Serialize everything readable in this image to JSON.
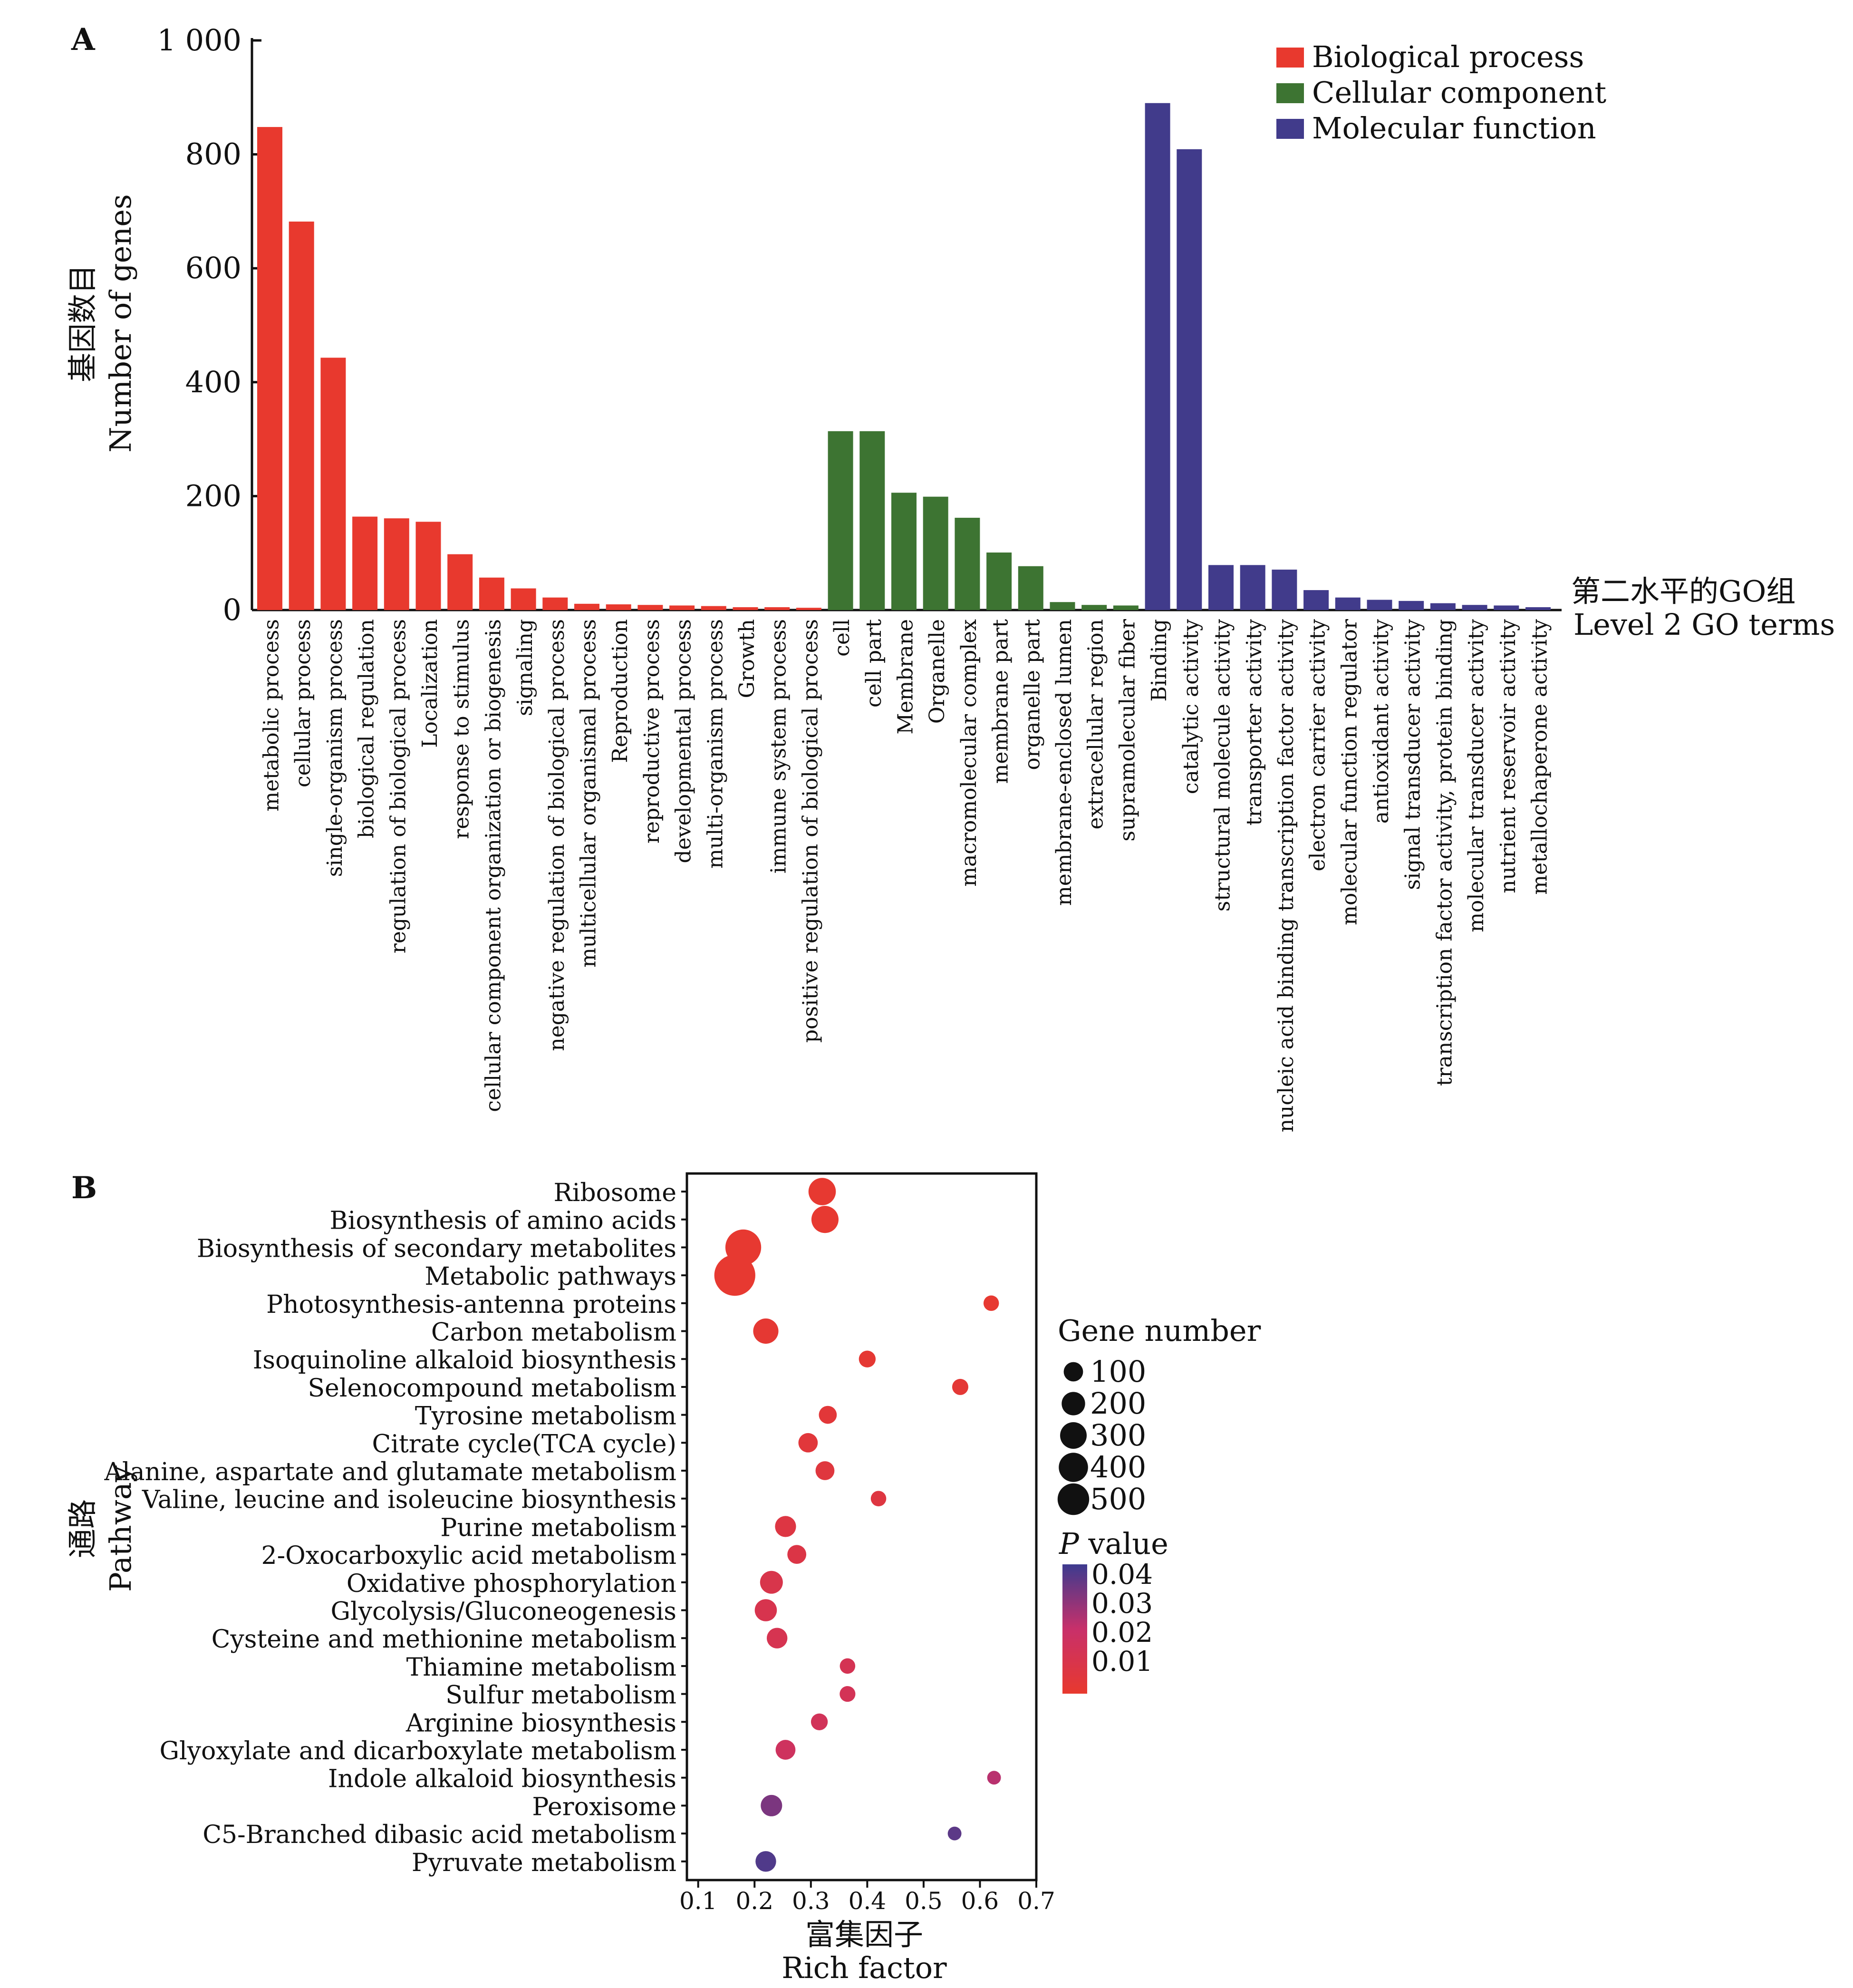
{
  "colors": {
    "biological_process": "#e8392e",
    "cellular_component": "#3d7432",
    "molecular_function": "#413b8b",
    "p_low": "#e8392e",
    "p_mid": "#c8306a",
    "p_high": "#3d3b8f",
    "axis": "#111111"
  },
  "chart_data": [
    {
      "type": "bar",
      "panel_label": "A",
      "ylabel_cn": "基因数目",
      "ylabel_en": "Number of genes",
      "xlabel_cn": "第二水平的GO组",
      "xlabel_en": "Level 2 GO terms",
      "ylim": [
        0,
        1000
      ],
      "yticks": [
        "0",
        "200",
        "400",
        "600",
        "800",
        "1 000"
      ],
      "legend_position": "top-right",
      "legend": [
        {
          "name": "Biological process",
          "color_key": "biological_process"
        },
        {
          "name": "Cellular component",
          "color_key": "cellular_component"
        },
        {
          "name": "Molecular function",
          "color_key": "molecular_function"
        }
      ],
      "bars": [
        {
          "label": "metabolic process",
          "value": 848,
          "group": "biological_process"
        },
        {
          "label": "cellular process",
          "value": 682,
          "group": "biological_process"
        },
        {
          "label": "single-organism process",
          "value": 443,
          "group": "biological_process"
        },
        {
          "label": "biological regulation",
          "value": 164,
          "group": "biological_process"
        },
        {
          "label": "regulation of biological process",
          "value": 161,
          "group": "biological_process"
        },
        {
          "label": "Localization",
          "value": 155,
          "group": "biological_process"
        },
        {
          "label": "response to stimulus",
          "value": 98,
          "group": "biological_process"
        },
        {
          "label": "cellular component organization or biogenesis",
          "value": 57,
          "group": "biological_process"
        },
        {
          "label": "signaling",
          "value": 38,
          "group": "biological_process"
        },
        {
          "label": "negative regulation of biological process",
          "value": 22,
          "group": "biological_process"
        },
        {
          "label": "multicellular organismal process",
          "value": 11,
          "group": "biological_process"
        },
        {
          "label": "Reproduction",
          "value": 10,
          "group": "biological_process"
        },
        {
          "label": "reproductive process",
          "value": 9,
          "group": "biological_process"
        },
        {
          "label": "developmental process",
          "value": 8,
          "group": "biological_process"
        },
        {
          "label": "multi-organism process",
          "value": 7,
          "group": "biological_process"
        },
        {
          "label": "Growth",
          "value": 5,
          "group": "biological_process"
        },
        {
          "label": "immune system process",
          "value": 5,
          "group": "biological_process"
        },
        {
          "label": "positive regulation of biological process",
          "value": 4,
          "group": "biological_process"
        },
        {
          "label": "cell",
          "value": 314,
          "group": "cellular_component"
        },
        {
          "label": "cell part",
          "value": 314,
          "group": "cellular_component"
        },
        {
          "label": "Membrane",
          "value": 206,
          "group": "cellular_component"
        },
        {
          "label": "Organelle",
          "value": 199,
          "group": "cellular_component"
        },
        {
          "label": "macromolecular complex",
          "value": 162,
          "group": "cellular_component"
        },
        {
          "label": "membrane part",
          "value": 101,
          "group": "cellular_component"
        },
        {
          "label": "organelle part",
          "value": 77,
          "group": "cellular_component"
        },
        {
          "label": "membrane-enclosed lumen",
          "value": 14,
          "group": "cellular_component"
        },
        {
          "label": "extracellular region",
          "value": 9,
          "group": "cellular_component"
        },
        {
          "label": "supramolecular fiber",
          "value": 8,
          "group": "cellular_component"
        },
        {
          "label": "Binding",
          "value": 890,
          "group": "molecular_function"
        },
        {
          "label": "catalytic activity",
          "value": 809,
          "group": "molecular_function"
        },
        {
          "label": "structural molecule activity",
          "value": 79,
          "group": "molecular_function"
        },
        {
          "label": "transporter activity",
          "value": 79,
          "group": "molecular_function"
        },
        {
          "label": "nucleic acid binding transcription factor activity",
          "value": 71,
          "group": "molecular_function"
        },
        {
          "label": "electron carrier activity",
          "value": 35,
          "group": "molecular_function"
        },
        {
          "label": "molecular function regulator",
          "value": 22,
          "group": "molecular_function"
        },
        {
          "label": "antioxidant activity",
          "value": 18,
          "group": "molecular_function"
        },
        {
          "label": "signal transducer activity",
          "value": 16,
          "group": "molecular_function"
        },
        {
          "label": "transcription factor activity, protein binding",
          "value": 12,
          "group": "molecular_function"
        },
        {
          "label": "molecular transducer activity",
          "value": 9,
          "group": "molecular_function"
        },
        {
          "label": "nutrient reservoir activity",
          "value": 8,
          "group": "molecular_function"
        },
        {
          "label": "metallochaperone activity",
          "value": 5,
          "group": "molecular_function"
        }
      ]
    },
    {
      "type": "scatter",
      "panel_label": "B",
      "ylabel_cn": "通路",
      "ylabel_en": "Pathway",
      "xlabel_cn": "富集因子",
      "xlabel_en": "Rich factor",
      "xlim": [
        0.08,
        0.7
      ],
      "xticks": [
        "0.1",
        "0.2",
        "0.3",
        "0.4",
        "0.5",
        "0.6",
        "0.7"
      ],
      "size_legend_title": "Gene number",
      "size_legend": [
        100,
        200,
        300,
        400,
        500
      ],
      "color_legend_title_italic": "P",
      "color_legend_title_rest": " value",
      "color_legend": [
        "0.04",
        "0.03",
        "0.02",
        "0.01"
      ],
      "plim": [
        0,
        0.045
      ],
      "points": [
        {
          "pathway": "Ribosome",
          "rich_factor": 0.32,
          "gene_number": 180,
          "p_value": 0.001
        },
        {
          "pathway": "Biosynthesis of amino acids",
          "rich_factor": 0.325,
          "gene_number": 175,
          "p_value": 0.001
        },
        {
          "pathway": "Biosynthesis of secondary metabolites",
          "rich_factor": 0.18,
          "gene_number": 390,
          "p_value": 0.001
        },
        {
          "pathway": "Metabolic pathways",
          "rich_factor": 0.165,
          "gene_number": 560,
          "p_value": 0.001
        },
        {
          "pathway": "Photosynthesis-antenna proteins",
          "rich_factor": 0.62,
          "gene_number": 20,
          "p_value": 0.001
        },
        {
          "pathway": "Carbon metabolism",
          "rich_factor": 0.22,
          "gene_number": 140,
          "p_value": 0.002
        },
        {
          "pathway": "Isoquinoline alkaloid biosynthesis",
          "rich_factor": 0.4,
          "gene_number": 30,
          "p_value": 0.002
        },
        {
          "pathway": "Selenocompound metabolism",
          "rich_factor": 0.565,
          "gene_number": 25,
          "p_value": 0.003
        },
        {
          "pathway": "Tyrosine metabolism",
          "rich_factor": 0.33,
          "gene_number": 40,
          "p_value": 0.004
        },
        {
          "pathway": "Citrate cycle(TCA cycle)",
          "rich_factor": 0.295,
          "gene_number": 55,
          "p_value": 0.005
        },
        {
          "pathway": "Alanine, aspartate and glutamate metabolism",
          "rich_factor": 0.325,
          "gene_number": 50,
          "p_value": 0.006
        },
        {
          "pathway": "Valine, leucine and isoleucine biosynthesis",
          "rich_factor": 0.42,
          "gene_number": 20,
          "p_value": 0.007
        },
        {
          "pathway": "Purine metabolism",
          "rich_factor": 0.255,
          "gene_number": 75,
          "p_value": 0.008
        },
        {
          "pathway": "2-Oxocarboxylic acid metabolism",
          "rich_factor": 0.275,
          "gene_number": 50,
          "p_value": 0.009
        },
        {
          "pathway": "Oxidative phosphorylation",
          "rich_factor": 0.23,
          "gene_number": 100,
          "p_value": 0.011
        },
        {
          "pathway": "Glycolysis/Gluconeogenesis",
          "rich_factor": 0.22,
          "gene_number": 90,
          "p_value": 0.012
        },
        {
          "pathway": "Cysteine and methionine metabolism",
          "rich_factor": 0.24,
          "gene_number": 70,
          "p_value": 0.013
        },
        {
          "pathway": "Thiamine metabolism",
          "rich_factor": 0.365,
          "gene_number": 20,
          "p_value": 0.014
        },
        {
          "pathway": "Sulfur metabolism",
          "rich_factor": 0.365,
          "gene_number": 22,
          "p_value": 0.015
        },
        {
          "pathway": "Arginine biosynthesis",
          "rich_factor": 0.315,
          "gene_number": 30,
          "p_value": 0.016
        },
        {
          "pathway": "Glyoxylate and dicarboxylate metabolism",
          "rich_factor": 0.255,
          "gene_number": 60,
          "p_value": 0.018
        },
        {
          "pathway": "Indole alkaloid biosynthesis",
          "rich_factor": 0.625,
          "gene_number": 10,
          "p_value": 0.025
        },
        {
          "pathway": "Peroxisome",
          "rich_factor": 0.23,
          "gene_number": 80,
          "p_value": 0.035
        },
        {
          "pathway": "C5-Branched dibasic acid metabolism",
          "rich_factor": 0.555,
          "gene_number": 10,
          "p_value": 0.04
        },
        {
          "pathway": "Pyruvate metabolism",
          "rich_factor": 0.22,
          "gene_number": 70,
          "p_value": 0.042
        }
      ]
    }
  ]
}
